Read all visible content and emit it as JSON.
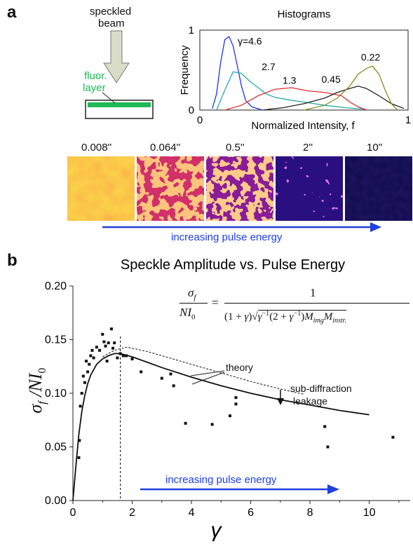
{
  "panel_a": {
    "letter": "a",
    "schematic": {
      "beam_label_1": "speckled",
      "beam_label_2": "beam",
      "layer_label_1": "fluor.",
      "layer_label_2": "layer"
    },
    "strip": {
      "exposures": [
        "0.008''",
        "0.064''",
        "0.5''",
        "2''",
        "10''"
      ],
      "arrow_label": "increasing pulse energy"
    }
  },
  "panel_b": {
    "letter": "b",
    "arrow_label": "increasing pulse energy",
    "annotations": {
      "theory": "theory",
      "leakage_1": "sub-diffraction",
      "leakage_2": "leakage"
    },
    "formula": {
      "numerator": "1",
      "lhs_num": "σ_f",
      "lhs_den": "NI_0"
    }
  },
  "colors": {
    "blue": "#1f3fe0",
    "green_layer": "#1db954",
    "gamma_blue": "#2233dd",
    "gamma_teal": "#22aaaa",
    "gamma_red": "#e03030",
    "gamma_black": "#222222",
    "gamma_olive": "#8a8a20"
  },
  "chart_data": [
    {
      "type": "line",
      "title": "Histograms",
      "xlabel": "Normalized Intensity, f",
      "ylabel": "Frequency",
      "xlim": [
        0,
        1
      ],
      "ylim": [
        0,
        1
      ],
      "x_ticks": [
        "0",
        "1"
      ],
      "y_ticks": [
        "0",
        "1"
      ],
      "series": [
        {
          "name": "γ=4.6",
          "color": "#2233dd",
          "x": [
            0.06,
            0.08,
            0.1,
            0.12,
            0.14,
            0.16,
            0.18,
            0.2,
            0.22,
            0.25,
            0.3
          ],
          "y": [
            0.02,
            0.2,
            0.6,
            0.88,
            0.92,
            0.8,
            0.55,
            0.3,
            0.12,
            0.04,
            0.0
          ]
        },
        {
          "name": "2.7",
          "color": "#22aaaa",
          "x": [
            0.08,
            0.12,
            0.16,
            0.2,
            0.24,
            0.28,
            0.32,
            0.36,
            0.42,
            0.5,
            0.6,
            0.7,
            0.8
          ],
          "y": [
            0.0,
            0.25,
            0.48,
            0.46,
            0.36,
            0.28,
            0.2,
            0.16,
            0.13,
            0.1,
            0.06,
            0.03,
            0.01
          ]
        },
        {
          "name": "1.3",
          "color": "#e03030",
          "x": [
            0.12,
            0.2,
            0.28,
            0.36,
            0.44,
            0.52,
            0.6,
            0.68,
            0.72,
            0.76,
            0.8
          ],
          "y": [
            0.0,
            0.06,
            0.18,
            0.26,
            0.28,
            0.24,
            0.22,
            0.18,
            0.1,
            0.04,
            0.0
          ]
        },
        {
          "name": "0.45",
          "color": "#222222",
          "x": [
            0.3,
            0.4,
            0.5,
            0.6,
            0.66,
            0.72,
            0.76,
            0.8,
            0.86,
            0.92,
            0.98
          ],
          "y": [
            0.0,
            0.03,
            0.08,
            0.15,
            0.22,
            0.27,
            0.3,
            0.27,
            0.18,
            0.08,
            0.02
          ]
        },
        {
          "name": "0.22",
          "color": "#8a8a20",
          "x": [
            0.5,
            0.6,
            0.66,
            0.72,
            0.76,
            0.8,
            0.83,
            0.86,
            0.89,
            0.92,
            0.95
          ],
          "y": [
            0.0,
            0.06,
            0.15,
            0.3,
            0.45,
            0.52,
            0.55,
            0.45,
            0.25,
            0.08,
            0.0
          ]
        }
      ]
    },
    {
      "type": "scatter",
      "title": "Speckle Amplitude vs. Pulse Energy",
      "xlabel": "γ",
      "ylabel": "σ_f / NI_0",
      "xlim": [
        0,
        11.5
      ],
      "ylim": [
        0,
        0.2
      ],
      "x_ticks": [
        0,
        2,
        4,
        6,
        8,
        10
      ],
      "y_ticks": [
        "0.00",
        "0.05",
        "0.10",
        "0.15",
        "0.20"
      ],
      "vline_x": 1.6,
      "points": [
        [
          0.2,
          0.04
        ],
        [
          0.22,
          0.056
        ],
        [
          0.25,
          0.088
        ],
        [
          0.3,
          0.1
        ],
        [
          0.35,
          0.116
        ],
        [
          0.4,
          0.11
        ],
        [
          0.45,
          0.13
        ],
        [
          0.5,
          0.12
        ],
        [
          0.55,
          0.127
        ],
        [
          0.6,
          0.135
        ],
        [
          0.65,
          0.14
        ],
        [
          0.7,
          0.133
        ],
        [
          0.8,
          0.143
        ],
        [
          0.9,
          0.14
        ],
        [
          1.0,
          0.155
        ],
        [
          1.05,
          0.148
        ],
        [
          1.1,
          0.144
        ],
        [
          1.15,
          0.13
        ],
        [
          1.2,
          0.147
        ],
        [
          1.3,
          0.16
        ],
        [
          1.35,
          0.142
        ],
        [
          1.4,
          0.147
        ],
        [
          1.5,
          0.133
        ],
        [
          1.6,
          0.137
        ],
        [
          1.7,
          0.135
        ],
        [
          1.8,
          0.135
        ],
        [
          2.0,
          0.132
        ],
        [
          2.3,
          0.12
        ],
        [
          3.0,
          0.114
        ],
        [
          3.3,
          0.118
        ],
        [
          3.4,
          0.107
        ],
        [
          3.8,
          0.072
        ],
        [
          4.7,
          0.071
        ],
        [
          5.3,
          0.079
        ],
        [
          5.5,
          0.09
        ],
        [
          5.5,
          0.096
        ],
        [
          8.5,
          0.069
        ],
        [
          8.6,
          0.05
        ],
        [
          10.8,
          0.059
        ]
      ],
      "series": [
        {
          "name": "theory",
          "style": "solid",
          "x": [
            0,
            0.1,
            0.2,
            0.3,
            0.4,
            0.5,
            0.6,
            0.8,
            1.0,
            1.2,
            1.4,
            1.6,
            2.0,
            2.5,
            3,
            4,
            5,
            6,
            7,
            8,
            9,
            10
          ],
          "y": [
            0,
            0.032,
            0.062,
            0.083,
            0.098,
            0.109,
            0.117,
            0.127,
            0.132,
            0.135,
            0.137,
            0.137,
            0.134,
            0.129,
            0.124,
            0.115,
            0.107,
            0.1,
            0.094,
            0.089,
            0.084,
            0.08
          ]
        },
        {
          "name": "theory",
          "style": "dashed",
          "x": [
            1.0,
            1.4,
            1.8,
            2.0,
            2.5,
            3,
            4,
            5,
            6,
            7,
            7.8
          ],
          "y": [
            0.134,
            0.14,
            0.143,
            0.142,
            0.139,
            0.135,
            0.127,
            0.119,
            0.111,
            0.104,
            0.099
          ]
        }
      ]
    }
  ]
}
